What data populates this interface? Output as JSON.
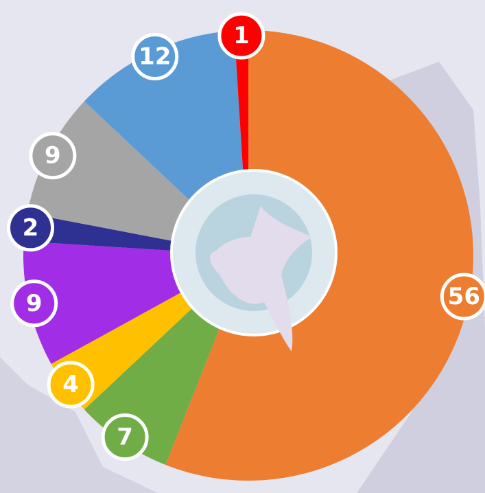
{
  "chart_data": {
    "type": "pie",
    "values": [
      56,
      7,
      4,
      9,
      2,
      9,
      12,
      1
    ],
    "colors": [
      "#ed7d31",
      "#70ad47",
      "#ffc000",
      "#a12de6",
      "#2e3192",
      "#a5a5a5",
      "#5b9bd5",
      "#ff0000"
    ]
  }
}
